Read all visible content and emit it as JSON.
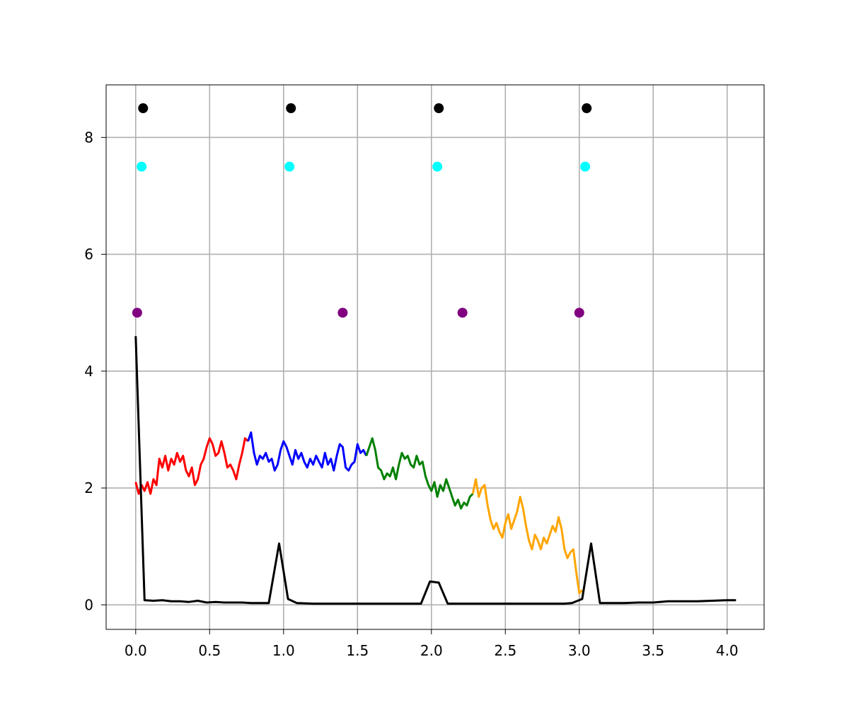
{
  "chart_data": {
    "type": "line",
    "title": "",
    "xlabel": "",
    "ylabel": "",
    "xlim": [
      -0.2,
      4.25
    ],
    "ylim": [
      -0.42,
      8.9
    ],
    "grid": true,
    "x_ticks": [
      0.0,
      0.5,
      1.0,
      1.5,
      2.0,
      2.5,
      3.0,
      3.5,
      4.0
    ],
    "x_tick_labels": [
      "0.0",
      "0.5",
      "1.0",
      "1.5",
      "2.0",
      "2.5",
      "3.0",
      "3.5",
      "4.0"
    ],
    "y_ticks": [
      0,
      2,
      4,
      6,
      8
    ],
    "y_tick_labels": [
      "0",
      "2",
      "4",
      "6",
      "8"
    ],
    "line_series": [
      {
        "color": "#ff0000",
        "x": [
          0.0,
          0.02,
          0.04,
          0.06,
          0.08,
          0.1,
          0.12,
          0.14,
          0.16,
          0.18,
          0.2,
          0.22,
          0.24,
          0.26,
          0.28,
          0.3,
          0.32,
          0.34,
          0.36,
          0.38,
          0.4,
          0.42,
          0.44,
          0.46,
          0.48,
          0.5,
          0.52,
          0.54,
          0.56,
          0.58,
          0.6,
          0.62,
          0.64,
          0.66,
          0.68,
          0.7,
          0.72,
          0.74,
          0.76
        ],
        "y": [
          2.1,
          1.9,
          2.05,
          1.95,
          2.1,
          1.9,
          2.15,
          2.05,
          2.5,
          2.35,
          2.55,
          2.3,
          2.5,
          2.4,
          2.6,
          2.45,
          2.55,
          2.3,
          2.2,
          2.35,
          2.05,
          2.15,
          2.4,
          2.5,
          2.7,
          2.85,
          2.75,
          2.55,
          2.6,
          2.8,
          2.6,
          2.35,
          2.4,
          2.3,
          2.15,
          2.4,
          2.6,
          2.85,
          2.8
        ]
      },
      {
        "color": "#0000ff",
        "x": [
          0.76,
          0.78,
          0.8,
          0.82,
          0.84,
          0.86,
          0.88,
          0.9,
          0.92,
          0.94,
          0.96,
          0.98,
          1.0,
          1.02,
          1.04,
          1.06,
          1.08,
          1.1,
          1.12,
          1.14,
          1.16,
          1.18,
          1.2,
          1.22,
          1.24,
          1.26,
          1.28,
          1.3,
          1.32,
          1.34,
          1.36,
          1.38,
          1.4,
          1.42,
          1.44,
          1.46,
          1.48,
          1.5,
          1.52,
          1.54,
          1.56
        ],
        "y": [
          2.8,
          2.95,
          2.6,
          2.4,
          2.55,
          2.5,
          2.6,
          2.45,
          2.5,
          2.3,
          2.4,
          2.65,
          2.8,
          2.7,
          2.55,
          2.4,
          2.65,
          2.5,
          2.6,
          2.45,
          2.35,
          2.5,
          2.4,
          2.55,
          2.45,
          2.35,
          2.6,
          2.4,
          2.5,
          2.3,
          2.55,
          2.75,
          2.7,
          2.35,
          2.3,
          2.4,
          2.45,
          2.75,
          2.6,
          2.65,
          2.55
        ]
      },
      {
        "color": "#008000",
        "x": [
          1.56,
          1.58,
          1.6,
          1.62,
          1.64,
          1.66,
          1.68,
          1.7,
          1.72,
          1.74,
          1.76,
          1.78,
          1.8,
          1.82,
          1.84,
          1.86,
          1.88,
          1.9,
          1.92,
          1.94,
          1.96,
          1.98,
          2.0,
          2.02,
          2.04,
          2.06,
          2.08,
          2.1,
          2.12,
          2.14,
          2.16,
          2.18,
          2.2,
          2.22,
          2.24,
          2.26,
          2.28
        ],
        "y": [
          2.55,
          2.7,
          2.85,
          2.65,
          2.35,
          2.3,
          2.15,
          2.25,
          2.2,
          2.35,
          2.15,
          2.4,
          2.6,
          2.5,
          2.55,
          2.4,
          2.35,
          2.55,
          2.4,
          2.45,
          2.2,
          2.05,
          1.95,
          2.1,
          1.85,
          2.05,
          1.95,
          2.15,
          2.0,
          1.85,
          1.7,
          1.8,
          1.65,
          1.75,
          1.7,
          1.85,
          1.9
        ]
      },
      {
        "color": "#ffa500",
        "x": [
          2.28,
          2.3,
          2.32,
          2.34,
          2.36,
          2.38,
          2.4,
          2.42,
          2.44,
          2.46,
          2.48,
          2.5,
          2.52,
          2.54,
          2.56,
          2.58,
          2.6,
          2.62,
          2.64,
          2.66,
          2.68,
          2.7,
          2.72,
          2.74,
          2.76,
          2.78,
          2.8,
          2.82,
          2.84,
          2.86,
          2.88,
          2.9,
          2.92,
          2.94,
          2.96,
          2.98,
          3.0,
          3.02
        ],
        "y": [
          1.9,
          2.15,
          1.85,
          2.0,
          2.05,
          1.7,
          1.45,
          1.3,
          1.4,
          1.25,
          1.15,
          1.4,
          1.55,
          1.3,
          1.45,
          1.6,
          1.85,
          1.65,
          1.35,
          1.1,
          0.95,
          1.2,
          1.1,
          0.95,
          1.15,
          1.05,
          1.2,
          1.35,
          1.25,
          1.5,
          1.3,
          0.95,
          0.8,
          0.9,
          0.95,
          0.55,
          0.2,
          0.25
        ]
      },
      {
        "color": "#000000",
        "x": [
          0.0,
          0.06,
          0.12,
          0.18,
          0.24,
          0.3,
          0.36,
          0.42,
          0.48,
          0.54,
          0.6,
          0.66,
          0.72,
          0.78,
          0.84,
          0.9,
          0.97,
          1.03,
          1.09,
          1.2,
          1.4,
          1.5,
          1.7,
          1.93,
          1.99,
          2.05,
          2.11,
          2.17,
          2.3,
          2.5,
          2.7,
          2.9,
          2.95,
          3.02,
          3.08,
          3.14,
          3.3,
          3.4,
          3.5,
          3.6,
          3.8,
          4.0,
          4.06
        ],
        "y": [
          4.6,
          0.08,
          0.07,
          0.08,
          0.06,
          0.06,
          0.05,
          0.07,
          0.04,
          0.05,
          0.04,
          0.04,
          0.04,
          0.03,
          0.03,
          0.03,
          1.05,
          0.1,
          0.03,
          0.02,
          0.02,
          0.02,
          0.02,
          0.02,
          0.4,
          0.38,
          0.02,
          0.02,
          0.02,
          0.02,
          0.02,
          0.02,
          0.03,
          0.1,
          1.05,
          0.03,
          0.03,
          0.04,
          0.04,
          0.06,
          0.06,
          0.08,
          0.08
        ]
      }
    ],
    "scatter_series": [
      {
        "color": "#000000",
        "x": [
          0.05,
          1.05,
          2.05,
          3.05
        ],
        "y": [
          8.5,
          8.5,
          8.5,
          8.5
        ]
      },
      {
        "color": "#00ffff",
        "x": [
          0.04,
          1.04,
          2.04,
          3.04
        ],
        "y": [
          7.5,
          7.5,
          7.5,
          7.5
        ]
      },
      {
        "color": "#800080",
        "x": [
          0.01,
          1.4,
          2.21,
          3.0
        ],
        "y": [
          5.0,
          5.0,
          5.0,
          5.0
        ]
      }
    ]
  }
}
